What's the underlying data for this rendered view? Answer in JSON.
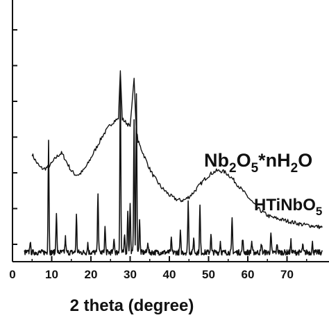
{
  "chart_data": {
    "type": "line",
    "xlabel": "2 theta (degree)",
    "ylabel": "",
    "xlim": [
      0,
      79
    ],
    "ylim": [
      0,
      100
    ],
    "x_ticks": [
      0,
      10,
      20,
      30,
      40,
      50,
      60,
      70
    ],
    "grid": false,
    "legend": "none",
    "series": [
      {
        "name": "Nb2O5*nH2O",
        "color": "#111111",
        "label_parts": [
          {
            "t": "Nb",
            "sub": false
          },
          {
            "t": "2",
            "sub": true
          },
          {
            "t": "O",
            "sub": false
          },
          {
            "t": "5",
            "sub": true
          },
          {
            "t": "*nH",
            "sub": false
          },
          {
            "t": "2",
            "sub": true
          },
          {
            "t": "O",
            "sub": false
          }
        ],
        "points": [
          [
            5,
            55
          ],
          [
            6,
            51
          ],
          [
            7,
            48
          ],
          [
            8,
            47
          ],
          [
            9,
            48
          ],
          [
            10,
            50
          ],
          [
            11,
            53
          ],
          [
            12,
            55
          ],
          [
            12.5,
            55.5
          ],
          [
            13,
            54
          ],
          [
            14,
            50
          ],
          [
            15,
            46
          ],
          [
            16,
            44
          ],
          [
            17,
            44
          ],
          [
            18,
            46
          ],
          [
            19,
            49
          ],
          [
            20,
            53
          ],
          [
            21,
            57
          ],
          [
            22,
            61
          ],
          [
            23,
            65
          ],
          [
            24,
            68
          ],
          [
            25,
            71
          ],
          [
            26,
            73
          ],
          [
            27,
            74
          ],
          [
            27.5,
            100
          ],
          [
            28,
            74
          ],
          [
            29,
            72
          ],
          [
            30,
            70
          ],
          [
            31,
            96
          ],
          [
            31.5,
            70
          ],
          [
            32,
            62
          ],
          [
            33,
            57
          ],
          [
            34,
            52
          ],
          [
            35,
            47
          ],
          [
            36,
            43
          ],
          [
            37,
            40
          ],
          [
            38,
            37
          ],
          [
            39,
            35
          ],
          [
            40,
            33
          ],
          [
            41,
            31.5
          ],
          [
            42,
            30.5
          ],
          [
            43,
            30
          ],
          [
            44,
            30.5
          ],
          [
            45,
            32
          ],
          [
            46,
            34
          ],
          [
            47,
            36.5
          ],
          [
            48,
            39
          ],
          [
            49,
            41.5
          ],
          [
            50,
            43.5
          ],
          [
            51,
            45
          ],
          [
            52,
            46
          ],
          [
            53,
            46
          ],
          [
            54,
            45.5
          ],
          [
            55,
            44
          ],
          [
            56,
            42
          ],
          [
            57,
            39.5
          ],
          [
            58,
            37
          ],
          [
            59,
            34.5
          ],
          [
            60,
            32
          ],
          [
            61,
            29.5
          ],
          [
            62,
            27
          ],
          [
            63,
            25
          ],
          [
            64,
            23.5
          ],
          [
            65,
            22
          ],
          [
            66,
            21
          ],
          [
            67,
            20.5
          ],
          [
            68,
            20
          ],
          [
            70,
            19
          ],
          [
            72,
            18
          ],
          [
            74,
            17
          ],
          [
            76,
            16.5
          ],
          [
            79,
            15.5
          ]
        ]
      },
      {
        "name": "HTiNbO5",
        "color": "#111111",
        "label_parts": [
          {
            "t": "HTiNbO",
            "sub": false
          },
          {
            "t": "5",
            "sub": true
          }
        ],
        "baseline": 2,
        "noise": 1.5,
        "x_range": [
          3,
          79
        ],
        "peaks": [
          [
            4.5,
            6
          ],
          [
            9.2,
            61
          ],
          [
            11.2,
            22
          ],
          [
            13.5,
            8
          ],
          [
            16.3,
            20
          ],
          [
            19.2,
            5
          ],
          [
            21.8,
            33
          ],
          [
            23.6,
            14
          ],
          [
            25.9,
            8
          ],
          [
            27.5,
            95
          ],
          [
            28.6,
            9
          ],
          [
            29.4,
            23
          ],
          [
            30,
            27
          ],
          [
            31,
            73
          ],
          [
            31.6,
            85
          ],
          [
            32.4,
            18
          ],
          [
            34.5,
            6
          ],
          [
            40.5,
            7
          ],
          [
            42.8,
            11
          ],
          [
            44.8,
            28
          ],
          [
            46.2,
            8
          ],
          [
            47.8,
            25
          ],
          [
            50.6,
            10
          ],
          [
            53,
            6
          ],
          [
            56,
            18
          ],
          [
            58.7,
            8
          ],
          [
            61,
            6
          ],
          [
            63.5,
            5
          ],
          [
            65.9,
            10
          ],
          [
            67.5,
            5
          ],
          [
            71,
            6
          ],
          [
            74,
            4
          ],
          [
            76.5,
            5
          ]
        ]
      }
    ]
  }
}
